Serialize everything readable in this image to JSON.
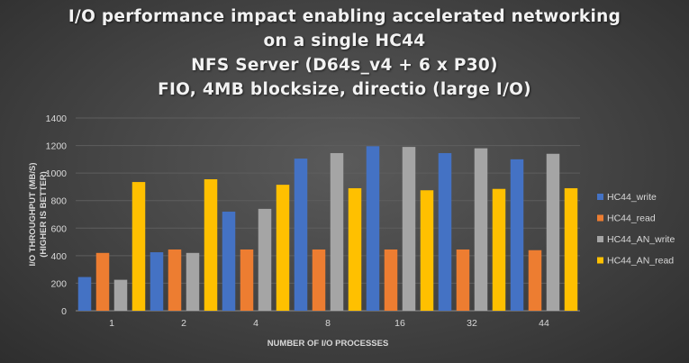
{
  "chart_data": {
    "type": "bar",
    "title_lines": [
      "I/O performance impact enabling accelerated networking",
      "on a single HC44",
      "NFS Server (D64s_v4 + 6 x P30)",
      "FIO, 4MB blocksize, directio (large I/O)"
    ],
    "xlabel": "NUMBER OF I/O PROCESSES",
    "ylabel_lines": [
      "I/O THROUGHPUT (MB/S)",
      "(HIGHER IS BETTER)"
    ],
    "categories": [
      "1",
      "2",
      "4",
      "8",
      "16",
      "32",
      "44"
    ],
    "ylim": [
      0,
      1400
    ],
    "yticks": [
      0,
      200,
      400,
      600,
      800,
      1000,
      1200,
      1400
    ],
    "grid": true,
    "legend_position": "right",
    "series": [
      {
        "name": "HC44_write",
        "color": "#4472c4",
        "values": [
          245,
          425,
          720,
          1105,
          1195,
          1145,
          1100
        ]
      },
      {
        "name": "HC44_read",
        "color": "#ed7d31",
        "values": [
          420,
          445,
          445,
          445,
          445,
          445,
          440
        ]
      },
      {
        "name": "HC44_AN_write",
        "color": "#a5a5a5",
        "values": [
          225,
          420,
          740,
          1145,
          1190,
          1180,
          1140
        ]
      },
      {
        "name": "HC44_AN_read",
        "color": "#ffc000",
        "values": [
          935,
          955,
          915,
          890,
          875,
          885,
          890
        ]
      }
    ]
  }
}
